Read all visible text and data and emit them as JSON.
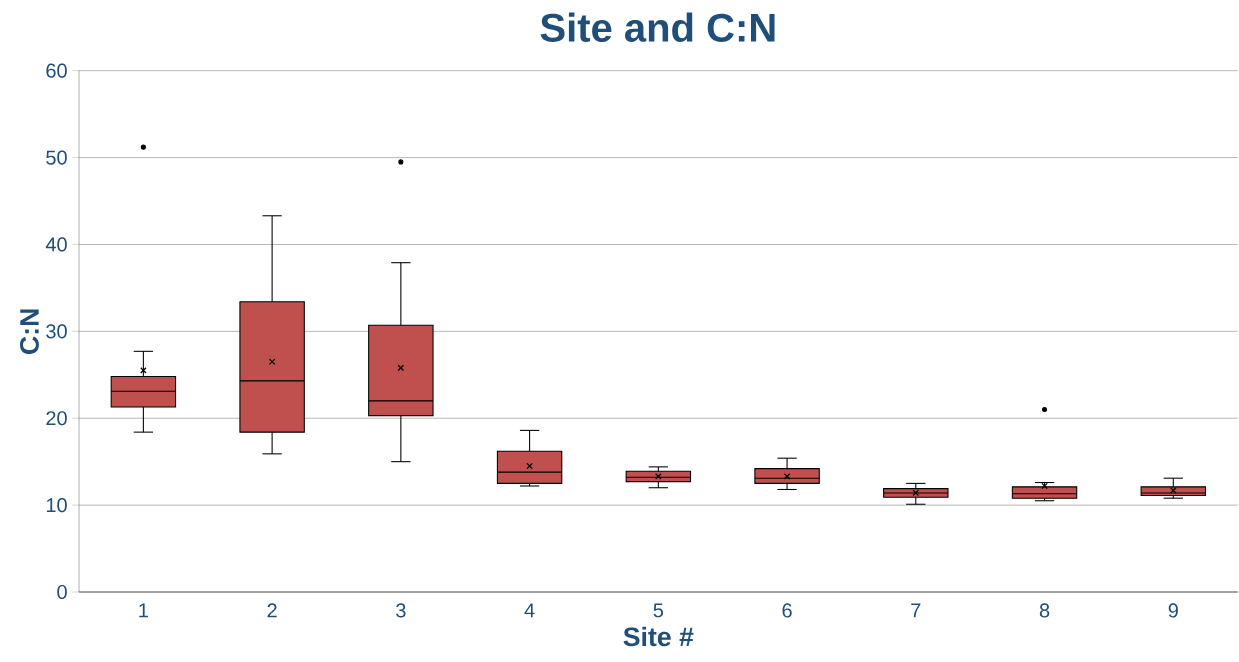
{
  "chart_data": {
    "type": "box",
    "title": "Site and C:N",
    "xlabel": "Site #",
    "ylabel": "C:N",
    "categories": [
      "1",
      "2",
      "3",
      "4",
      "5",
      "6",
      "7",
      "8",
      "9"
    ],
    "color": "#c0504d",
    "boxes": [
      {
        "low": 18.4,
        "q1": 21.3,
        "median": 23.1,
        "q3": 24.8,
        "high": 27.7,
        "mean": 25.5,
        "outliers": [
          51.2
        ]
      },
      {
        "low": 15.9,
        "q1": 18.4,
        "median": 24.3,
        "q3": 33.4,
        "high": 43.3,
        "mean": 26.5
      },
      {
        "low": 15.0,
        "q1": 20.3,
        "median": 22.0,
        "q3": 30.7,
        "high": 37.9,
        "mean": 25.8,
        "outliers": [
          49.5
        ]
      },
      {
        "low": 12.2,
        "q1": 12.5,
        "median": 13.8,
        "q3": 16.2,
        "high": 18.6,
        "mean": 14.5
      },
      {
        "low": 12.0,
        "q1": 12.7,
        "median": 13.2,
        "q3": 13.9,
        "high": 14.4,
        "mean": 13.3
      },
      {
        "low": 11.8,
        "q1": 12.5,
        "median": 13.1,
        "q3": 14.2,
        "high": 15.4,
        "mean": 13.3
      },
      {
        "low": 10.1,
        "q1": 10.9,
        "median": 11.4,
        "q3": 11.9,
        "high": 12.5,
        "mean": 11.4
      },
      {
        "low": 10.5,
        "q1": 10.8,
        "median": 11.3,
        "q3": 12.1,
        "high": 12.6,
        "mean": 12.2,
        "outliers": [
          21.0
        ]
      },
      {
        "low": 10.8,
        "q1": 11.1,
        "median": 11.4,
        "q3": 12.1,
        "high": 13.1,
        "mean": 11.7
      }
    ],
    "ylim": [
      0,
      60
    ],
    "yticks": [
      0,
      10,
      20,
      30,
      40,
      50,
      60
    ],
    "grid": "y"
  }
}
